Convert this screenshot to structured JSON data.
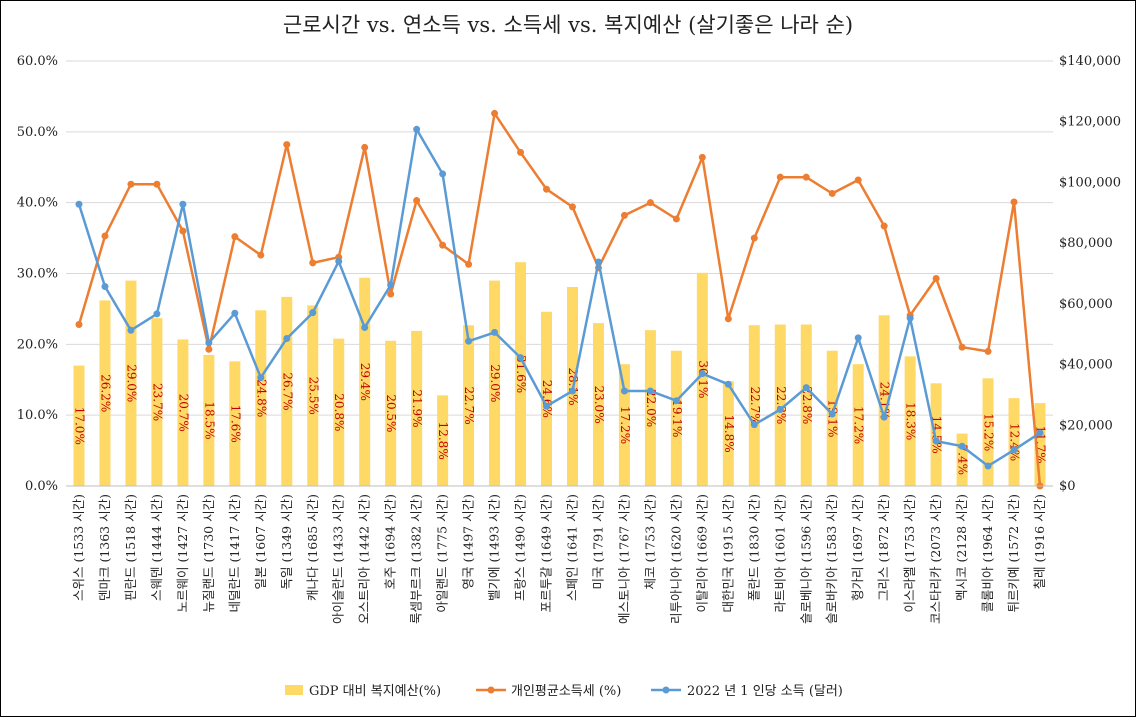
{
  "chart_data": {
    "type": "bar-line-combo",
    "title": "근로시간 vs. 연소득 vs. 소득세 vs. 복지예산 (살기좋은 나라 순)",
    "categories": [
      "스위스 (1533 시간)",
      "덴마크 (1363 시간)",
      "핀란드 (1518 시간)",
      "스웨덴 (1444 시간)",
      "노르웨이 (1427 시간)",
      "뉴질랜드 (1730 시간)",
      "네덜란드 (1417 시간)",
      "일본 (1607 시간)",
      "독일 (1349 시간)",
      "캐나다 (1685 시간)",
      "아이슬란드 (1433 시간)",
      "오스트리아 (1442 시간)",
      "호주 (1694 시간)",
      "룩셈부르크 (1382 시간)",
      "아일랜드 (1775 시간)",
      "영국 (1497 시간)",
      "벨기에 (1493 시간)",
      "프랑스 (1490 시간)",
      "포르투갈 (1649 시간)",
      "스페인 (1641 시간)",
      "미국 (1791 시간)",
      "에스토니아 (1767 시간)",
      "체코 (1753 시간)",
      "리투아니아 (1620 시간)",
      "이탈리아 (1669 시간)",
      "대한민국 (1915 시간)",
      "폴란드 (1830 시간)",
      "라트비아 (1601 시간)",
      "슬로베니아 (1596 시간)",
      "슬로바키아 (1583 시간)",
      "헝가리 (1697 시간)",
      "그리스 (1872 시간)",
      "이스라엘 (1753 시간)",
      "코스타리카 (2073 시간)",
      "멕시코 (2128 시간)",
      "콜롬비아 (1964 시간)",
      "튀르키예 (1572 시간)",
      "칠레 (1916 시간)"
    ],
    "series": [
      {
        "name": "GDP 대비 복지예산(%)",
        "axis": "left",
        "kind": "bar",
        "color": "#FFD966",
        "values": [
          17.0,
          26.2,
          29.0,
          23.7,
          20.7,
          18.5,
          17.6,
          24.8,
          26.7,
          25.5,
          20.8,
          29.4,
          20.5,
          21.9,
          12.8,
          22.7,
          29.0,
          31.6,
          24.6,
          28.1,
          23.0,
          17.2,
          22.0,
          19.1,
          30.1,
          14.8,
          22.7,
          22.8,
          22.8,
          19.1,
          17.2,
          24.1,
          18.3,
          14.5,
          7.4,
          15.2,
          12.4,
          11.7
        ],
        "labels": [
          "17.0%",
          "26.2%",
          "29.0%",
          "23.7%",
          "20.7%",
          "18.5%",
          "17.6%",
          "24.8%",
          "26.7%",
          "25.5%",
          "20.8%",
          "29.4%",
          "20.5%",
          "21.9%",
          "12.8%",
          "22.7%",
          "29.0%",
          "31.6%",
          "24.6%",
          "28.1%",
          "23.0%",
          "17.2%",
          "22.0%",
          "19.1%",
          "30.1%",
          "14.8%",
          "22.7%",
          "22.8%",
          "22.8%",
          "19.1%",
          "17.2%",
          "24.1%",
          "18.3%",
          "14.5%",
          "7.4%",
          "15.2%",
          "12.4%",
          "11.7%"
        ]
      },
      {
        "name": "개인평균소득세 (%)",
        "axis": "left",
        "kind": "line",
        "color": "#ED7D31",
        "values": [
          22.8,
          35.3,
          42.6,
          42.6,
          36.0,
          19.3,
          35.2,
          32.6,
          48.2,
          31.5,
          32.3,
          47.8,
          27.1,
          40.3,
          34.0,
          31.3,
          52.6,
          47.1,
          41.9,
          39.4,
          30.8,
          38.2,
          40.0,
          37.7,
          46.4,
          23.6,
          35.0,
          43.6,
          43.6,
          41.3,
          43.2,
          36.7,
          24.1,
          29.3,
          19.6,
          19.0,
          40.1,
          0.0
        ]
      },
      {
        "name": "2022 년 1 인당 소득 (달러)",
        "axis": "right",
        "kind": "line",
        "color": "#5B9BD5",
        "values": [
          92800,
          65700,
          51300,
          56700,
          92800,
          47200,
          56900,
          35700,
          48600,
          57100,
          74000,
          52200,
          66200,
          117500,
          102800,
          47700,
          50600,
          42300,
          26300,
          31300,
          73800,
          31300,
          31300,
          28100,
          37000,
          33500,
          20200,
          25200,
          32400,
          23700,
          48800,
          22700,
          55300,
          14800,
          13100,
          6600,
          11900,
          17500
        ]
      }
    ],
    "y_left": {
      "min": 0,
      "max": 60,
      "step": 10,
      "tick_labels": [
        "0.0%",
        "10.0%",
        "20.0%",
        "30.0%",
        "40.0%",
        "50.0%",
        "60.0%"
      ]
    },
    "y_right": {
      "min": 0,
      "max": 140000,
      "step": 20000,
      "tick_labels": [
        "$0",
        "$20,000",
        "$40,000",
        "$60,000",
        "$80,000",
        "$100,000",
        "$120,000",
        "$140,000"
      ]
    },
    "grid": true,
    "legend_position": "bottom"
  }
}
